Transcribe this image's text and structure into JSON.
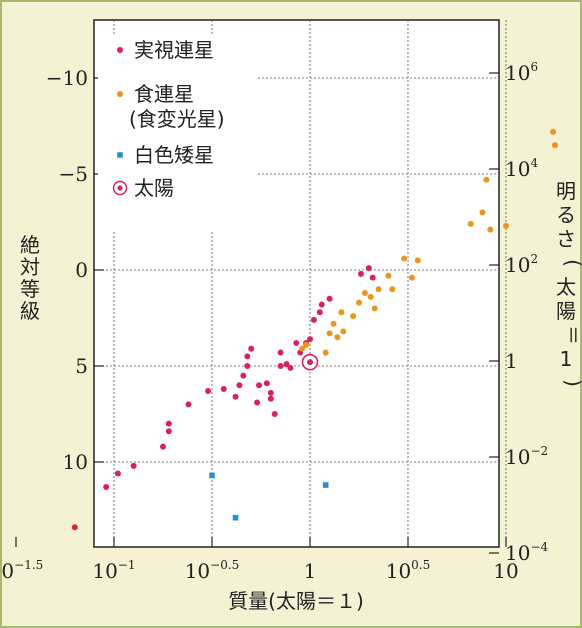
{
  "chart_data": {
    "type": "scatter",
    "xlabel": "質量(太陽＝１)",
    "ylabel_left": "絶対等級",
    "ylabel_right": "明るさ(太陽＝1)",
    "x_scale": "log10",
    "xlim": [
      -1.5,
      1.3
    ],
    "ylim_magnitude": [
      -12.5,
      14
    ],
    "y_inverted": true,
    "grid": true,
    "x_ticks": [
      {
        "value": -1.5,
        "base": "10",
        "exp": "−1.5"
      },
      {
        "value": -1,
        "base": "10",
        "exp": "−1"
      },
      {
        "value": -0.5,
        "base": "10",
        "exp": "−0.5"
      },
      {
        "value": 0,
        "base": "1",
        "exp": ""
      },
      {
        "value": 0.5,
        "base": "10",
        "exp": "0.5"
      },
      {
        "value": 1,
        "base": "10",
        "exp": ""
      }
    ],
    "y_left_ticks": [
      {
        "value": -10,
        "label": "−10"
      },
      {
        "value": -5,
        "label": "−5"
      },
      {
        "value": 0,
        "label": "0"
      },
      {
        "value": 5,
        "label": "5"
      },
      {
        "value": 10,
        "label": "10"
      }
    ],
    "y_right_ticks": [
      {
        "value": -10.26,
        "base": "10",
        "exp": "6"
      },
      {
        "value": -5.26,
        "base": "10",
        "exp": "4"
      },
      {
        "value": -0.26,
        "base": "10",
        "exp": "2"
      },
      {
        "value": 4.74,
        "base": "1",
        "exp": ""
      },
      {
        "value": 9.74,
        "base": "10",
        "exp": "−2"
      },
      {
        "value": 14.74,
        "base": "10",
        "exp": "−4"
      }
    ],
    "legend": {
      "placement": "top-left",
      "entries": [
        {
          "key": "visual",
          "label": "実視連星",
          "marker": "circle",
          "color": "#d6245a"
        },
        {
          "key": "eclipsing",
          "label": "食連星",
          "label2": "(食変光星)",
          "marker": "circle",
          "color": "#e8961e"
        },
        {
          "key": "white_dwarf",
          "label": "白色矮星",
          "marker": "square",
          "color": "#2a8fd0"
        },
        {
          "key": "sun",
          "label": "太陽",
          "marker": "sun",
          "color": "#d6245a"
        }
      ]
    },
    "series": [
      {
        "key": "visual",
        "color": "#d6245a",
        "marker": "circle",
        "x": [
          -1.2,
          -1.04,
          -0.98,
          -0.9,
          -0.75,
          -0.72,
          -0.72,
          -0.62,
          -0.52,
          -0.44,
          -0.38,
          -0.36,
          -0.34,
          -0.32,
          -0.32,
          -0.3,
          -0.27,
          -0.26,
          -0.22,
          -0.2,
          -0.2,
          -0.18,
          -0.15,
          -0.15,
          -0.12,
          -0.1,
          -0.07,
          -0.05,
          -0.02,
          0.0,
          0.02,
          0.05,
          0.06,
          0.1,
          0.26,
          0.3,
          0.32
        ],
        "y": [
          13.4,
          11.3,
          10.6,
          10.2,
          9.2,
          8.4,
          8.0,
          7.0,
          6.3,
          6.2,
          6.6,
          6.0,
          5.5,
          5.0,
          4.5,
          4.1,
          6.9,
          6.0,
          5.9,
          6.4,
          6.7,
          7.5,
          5.0,
          4.3,
          4.9,
          5.1,
          3.8,
          4.3,
          3.8,
          3.6,
          2.6,
          2.2,
          1.8,
          1.5,
          0.2,
          -0.1,
          0.4
        ]
      },
      {
        "key": "eclipsing",
        "color": "#e8961e",
        "marker": "circle",
        "x": [
          -0.04,
          -0.02,
          0.08,
          0.1,
          0.12,
          0.14,
          0.16,
          0.17,
          0.22,
          0.25,
          0.28,
          0.31,
          0.33,
          0.35,
          0.4,
          0.42,
          0.48,
          0.52,
          0.55,
          0.82,
          0.88,
          0.9,
          0.92,
          1.0,
          1.24,
          1.25
        ],
        "y": [
          4.1,
          3.9,
          4.3,
          3.3,
          2.8,
          3.5,
          2.2,
          3.2,
          2.4,
          1.7,
          1.2,
          1.4,
          2.0,
          1.0,
          0.3,
          1.0,
          -0.6,
          0.4,
          -0.5,
          -2.4,
          -3.0,
          -4.7,
          -2.1,
          -2.3,
          -7.2,
          -6.5
        ]
      },
      {
        "key": "white_dwarf",
        "color": "#2a8fd0",
        "marker": "square",
        "x": [
          -0.5,
          -0.38,
          0.08
        ],
        "y": [
          10.7,
          12.9,
          11.2
        ]
      },
      {
        "key": "sun",
        "color": "#d6245a",
        "marker": "sun",
        "x": [
          0.0
        ],
        "y": [
          4.8
        ]
      }
    ]
  }
}
